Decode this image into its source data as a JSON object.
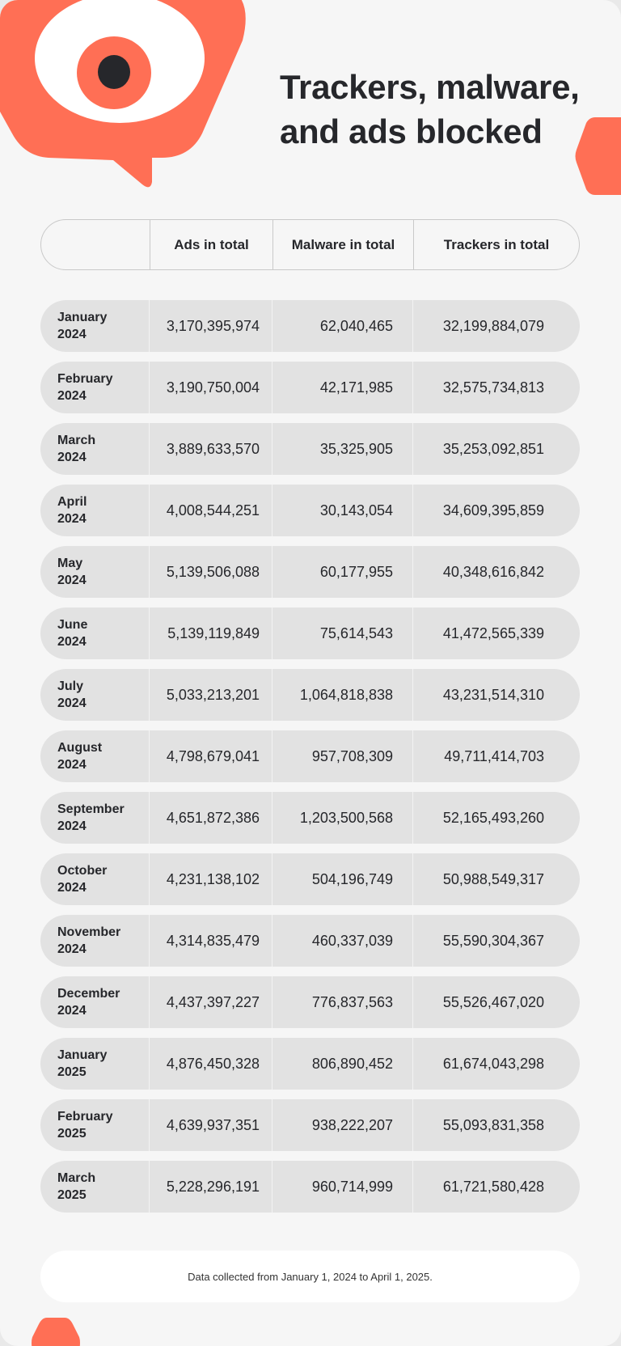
{
  "title_line1": "Trackers, malware,",
  "title_line2": "and ads blocked",
  "accent_color": "#ff6f55",
  "header": {
    "col0": "",
    "col1": "Ads in total",
    "col2": "Malware in total",
    "col3": "Trackers in total"
  },
  "rows": [
    {
      "month": "January",
      "year": "2024",
      "ads": "3,170,395,974",
      "malware": "62,040,465",
      "trackers": "32,199,884,079"
    },
    {
      "month": "February",
      "year": "2024",
      "ads": "3,190,750,004",
      "malware": "42,171,985",
      "trackers": "32,575,734,813"
    },
    {
      "month": "March",
      "year": "2024",
      "ads": "3,889,633,570",
      "malware": "35,325,905",
      "trackers": "35,253,092,851"
    },
    {
      "month": "April",
      "year": "2024",
      "ads": "4,008,544,251",
      "malware": "30,143,054",
      "trackers": "34,609,395,859"
    },
    {
      "month": "May",
      "year": "2024",
      "ads": "5,139,506,088",
      "malware": "60,177,955",
      "trackers": "40,348,616,842"
    },
    {
      "month": "June",
      "year": "2024",
      "ads": "5,139,119,849",
      "malware": "75,614,543",
      "trackers": "41,472,565,339"
    },
    {
      "month": "July",
      "year": "2024",
      "ads": "5,033,213,201",
      "malware": "1,064,818,838",
      "trackers": "43,231,514,310"
    },
    {
      "month": "August",
      "year": "2024",
      "ads": "4,798,679,041",
      "malware": "957,708,309",
      "trackers": "49,711,414,703"
    },
    {
      "month": "September",
      "year": "2024",
      "ads": "4,651,872,386",
      "malware": "1,203,500,568",
      "trackers": "52,165,493,260"
    },
    {
      "month": "October",
      "year": "2024",
      "ads": "4,231,138,102",
      "malware": "504,196,749",
      "trackers": "50,988,549,317"
    },
    {
      "month": "November",
      "year": "2024",
      "ads": "4,314,835,479",
      "malware": "460,337,039",
      "trackers": "55,590,304,367"
    },
    {
      "month": "December",
      "year": "2024",
      "ads": "4,437,397,227",
      "malware": "776,837,563",
      "trackers": "55,526,467,020"
    },
    {
      "month": "January",
      "year": "2025",
      "ads": "4,876,450,328",
      "malware": "806,890,452",
      "trackers": "61,674,043,298"
    },
    {
      "month": "February",
      "year": "2025",
      "ads": "4,639,937,351",
      "malware": "938,222,207",
      "trackers": "55,093,831,358"
    },
    {
      "month": "March",
      "year": "2025",
      "ads": "5,228,296,191",
      "malware": "960,714,999",
      "trackers": "61,721,580,428"
    }
  ],
  "footer": "Data collected from January 1, 2024 to April 1, 2025."
}
